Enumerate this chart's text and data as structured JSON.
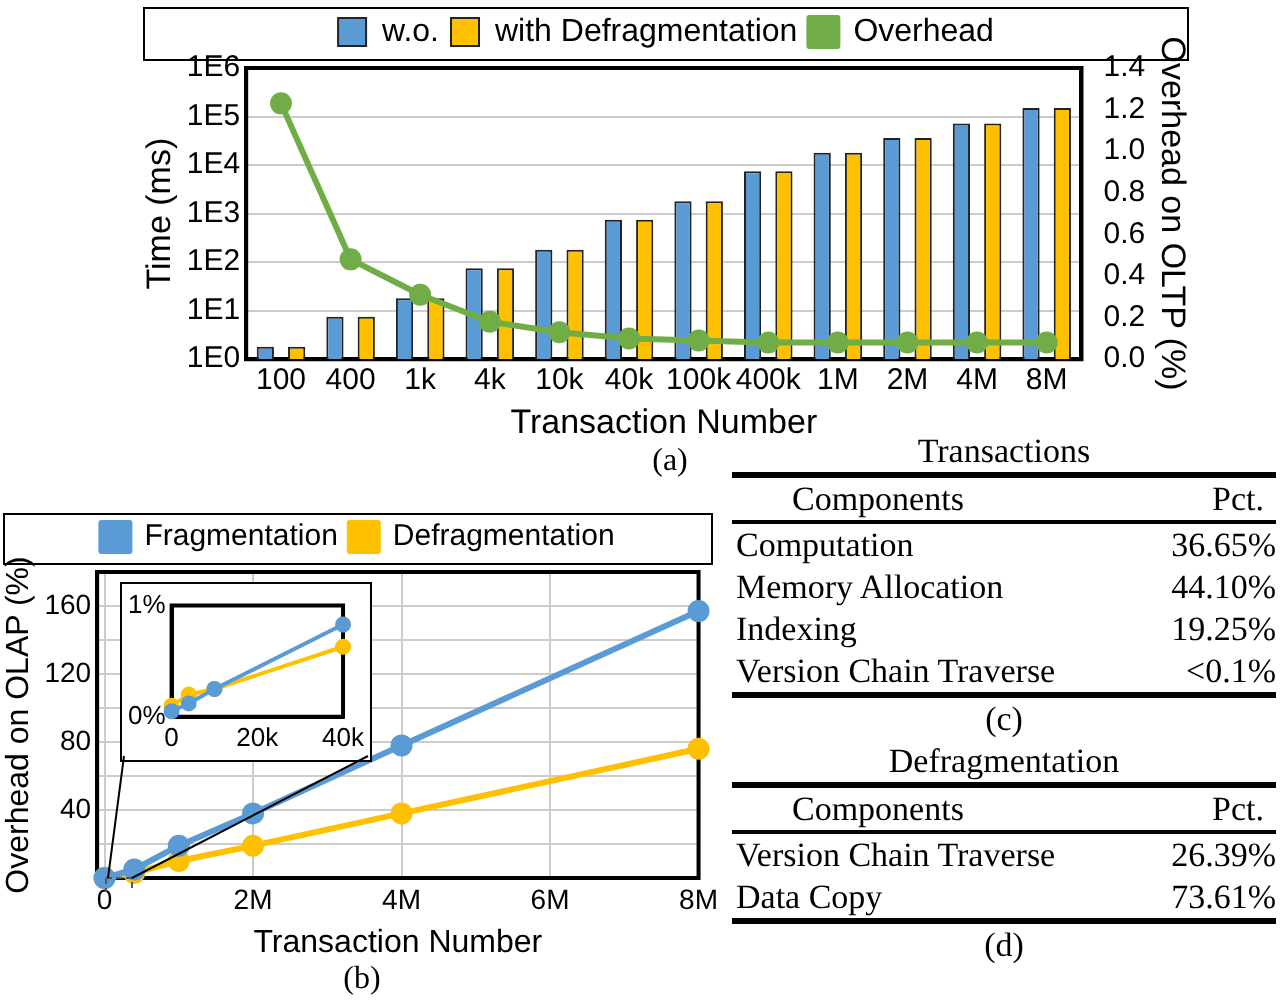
{
  "chart_data": [
    {
      "type": "bar",
      "categories": [
        "100",
        "400",
        "1k",
        "4k",
        "10k",
        "40k",
        "100k",
        "400k",
        "1M",
        "2M",
        "4M",
        "8M"
      ],
      "xlabel": "Transaction Number",
      "ylabel": "Time (ms)",
      "y2label": "Overhead on OLTP (%)",
      "log": "y",
      "ylim": [
        1,
        1000000
      ],
      "yticks": [
        {
          "value": 1,
          "label": "1E0"
        },
        {
          "value": 10,
          "label": "1E1"
        },
        {
          "value": 100,
          "label": "1E2"
        },
        {
          "value": 1000,
          "label": "1E3"
        },
        {
          "value": 10000,
          "label": "1E4"
        },
        {
          "value": 100000,
          "label": "1E5"
        },
        {
          "value": 1000000,
          "label": "1E6"
        }
      ],
      "y2lim": [
        0,
        1.4
      ],
      "y2ticks": [
        {
          "value": 0,
          "label": "0.0"
        },
        {
          "value": 0.2,
          "label": "0.2"
        },
        {
          "value": 0.4,
          "label": "0.4"
        },
        {
          "value": 0.6,
          "label": "0.6"
        },
        {
          "value": 0.8,
          "label": "0.8"
        },
        {
          "value": 1,
          "label": "1.0"
        },
        {
          "value": 1.2,
          "label": "1.2"
        },
        {
          "value": 1.4,
          "label": "1.4"
        }
      ],
      "grid": "y",
      "legend": "top",
      "marker": "circle",
      "annotations": [
        "(a)"
      ],
      "series": [
        {
          "name": "w.o.",
          "color": "#5b9bd5",
          "values": [
            1.8,
            7.5,
            18,
            75,
            180,
            750,
            1800,
            7500,
            18000,
            36000,
            72000,
            150000
          ]
        },
        {
          "name": "with Defragmentation",
          "color": "#ffc000",
          "values": [
            1.8,
            7.5,
            18,
            75,
            180,
            750,
            1800,
            7500,
            18000,
            36000,
            72000,
            150000
          ]
        },
        {
          "name": "Overhead",
          "type": "line",
          "axis": "y2",
          "color": "#70ad47",
          "values": [
            1.23,
            0.48,
            0.31,
            0.18,
            0.13,
            0.1,
            0.09,
            0.08,
            0.08,
            0.08,
            0.08,
            0.08
          ]
        }
      ]
    },
    {
      "type": "line",
      "xlabel": "Transaction Number",
      "ylabel": "Overhead on OLAP (%)",
      "xlim": [
        -100000,
        8000000
      ],
      "xticks": [
        0,
        {
          "value": 2000000,
          "label": "2M"
        },
        {
          "value": 4000000,
          "label": "4M"
        },
        {
          "value": 6000000,
          "label": "6M"
        },
        {
          "value": 8000000,
          "label": "8M"
        }
      ],
      "ylim": [
        0,
        180
      ],
      "yticks": [
        {
          "value": 0,
          "label": null
        },
        {
          "value": 20,
          "label": null
        },
        40,
        {
          "value": 60,
          "label": null
        },
        80,
        {
          "value": 100,
          "label": null
        },
        120,
        {
          "value": 140,
          "label": null
        },
        160
      ],
      "grid": true,
      "legend": "top",
      "marker": "circle",
      "annotations": [
        "(b)"
      ],
      "series": [
        {
          "name": "Fragmentation",
          "color": "#5b9bd5",
          "x": [
            0,
            400000,
            1000000,
            2000000,
            4000000,
            8000000
          ],
          "values": [
            0,
            5,
            19,
            38,
            78,
            157
          ]
        },
        {
          "name": "Defragmentation",
          "color": "#ffc000",
          "x": [
            0,
            400000,
            1000000,
            2000000,
            4000000,
            8000000
          ],
          "values": [
            0,
            3,
            10,
            19,
            38,
            76
          ]
        }
      ]
    },
    {
      "type": "line",
      "xlim": [
        0,
        40000
      ],
      "xticks": [
        0,
        {
          "value": 20000,
          "label": "20k"
        },
        {
          "value": 40000,
          "label": "40k"
        }
      ],
      "ylim": [
        0,
        1
      ],
      "yticks": [
        {
          "value": 0,
          "label": "0%"
        },
        {
          "value": 1,
          "label": "1%"
        }
      ],
      "marker": "circle",
      "series": [
        {
          "color": "#5b9bd5",
          "x": [
            0,
            4000,
            10000,
            40000
          ],
          "values": [
            0.05,
            0.12,
            0.25,
            0.83
          ]
        },
        {
          "color": "#ffc000",
          "x": [
            0,
            4000,
            10000,
            40000
          ],
          "values": [
            0.1,
            0.2,
            0.25,
            0.63
          ]
        }
      ]
    },
    {
      "type": "other",
      "title": "Transactions",
      "categories": [
        "Computation",
        "Memory Allocation",
        "Indexing",
        "Version Chain Traverse"
      ],
      "value_labels": [
        "36.65%",
        "44.10%",
        "19.25%",
        "<0.1%"
      ],
      "annotations": [
        "Components",
        "Pct.",
        "(c)"
      ]
    },
    {
      "type": "other",
      "title": "Defragmentation",
      "categories": [
        "Version Chain Traverse",
        "Data Copy"
      ],
      "value_labels": [
        "26.39%",
        "73.61%"
      ],
      "annotations": [
        "Components",
        "Pct.",
        "(d)"
      ]
    }
  ]
}
